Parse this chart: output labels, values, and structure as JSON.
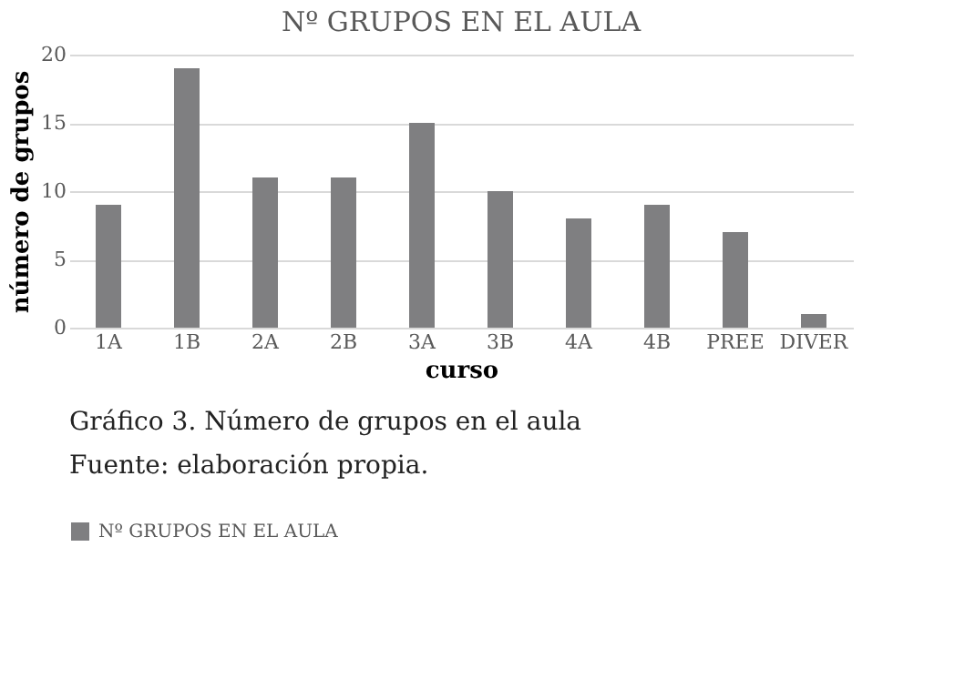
{
  "chart_data": {
    "type": "bar",
    "title": "Nº GRUPOS EN EL AULA",
    "xlabel": "curso",
    "ylabel": "número de grupos",
    "categories": [
      "1A",
      "1B",
      "2A",
      "2B",
      "3A",
      "3B",
      "4A",
      "4B",
      "PREE",
      "DIVER"
    ],
    "series": [
      {
        "name": "Nº GRUPOS EN EL AULA",
        "color": "#7f7f81",
        "values": [
          9,
          19,
          11,
          11,
          15,
          10,
          8,
          9,
          7,
          1
        ]
      }
    ],
    "ylim": [
      0,
      20
    ],
    "yticks": [
      0,
      5,
      10,
      15,
      20
    ],
    "grid": "y",
    "legend": "bottom",
    "annotations": [
      "Gráfico 3. Número de grupos en el aula",
      "Fuente: elaboración propia."
    ]
  }
}
